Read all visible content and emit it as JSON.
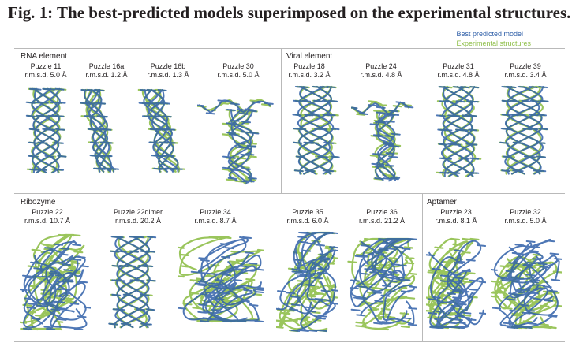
{
  "figure": {
    "title": "Fig. 1: The best-predicted models superimposed on the experimental structures.",
    "legend": {
      "best_label": "Best predicted model",
      "exp_label": "Experimental structures",
      "best_color": "#2f5fa8",
      "exp_color": "#8fbf4a"
    }
  },
  "sections": {
    "rna": "RNA element",
    "viral": "Viral element",
    "ribozyme": "Ribozyme",
    "aptamer": "Aptamer"
  },
  "puzzles": [
    {
      "name": "Puzzle 11",
      "rmsd": "r.m.s.d. 5.0 Å"
    },
    {
      "name": "Puzzle 16a",
      "rmsd": "r.m.s.d. 1.2 Å"
    },
    {
      "name": "Puzzle 16b",
      "rmsd": "r.m.s.d. 1.3 Å"
    },
    {
      "name": "Puzzle 30",
      "rmsd": "r.m.s.d. 5.0 Å"
    },
    {
      "name": "Puzzle 18",
      "rmsd": "r.m.s.d. 3.2 Å"
    },
    {
      "name": "Puzzle 24",
      "rmsd": "r.m.s.d. 4.8 Å"
    },
    {
      "name": "Puzzle 31",
      "rmsd": "r.m.s.d. 4.8 Å"
    },
    {
      "name": "Puzzle 39",
      "rmsd": "r.m.s.d. 3.4 Å"
    },
    {
      "name": "Puzzle 22",
      "rmsd": "r.m.s.d. 10.7 Å"
    },
    {
      "name": "Puzzle 22dimer",
      "rmsd": "r.m.s.d. 20.2 Å"
    },
    {
      "name": "Puzzle 34",
      "rmsd": "r.m.s.d. 8.7 Å"
    },
    {
      "name": "Puzzle 35",
      "rmsd": "r.m.s.d. 6.0 Å"
    },
    {
      "name": "Puzzle 36",
      "rmsd": "r.m.s.d. 21.2 Å"
    },
    {
      "name": "Puzzle 23",
      "rmsd": "r.m.s.d. 8.1 Å"
    },
    {
      "name": "Puzzle 32",
      "rmsd": "r.m.s.d. 5.0 Å"
    }
  ]
}
